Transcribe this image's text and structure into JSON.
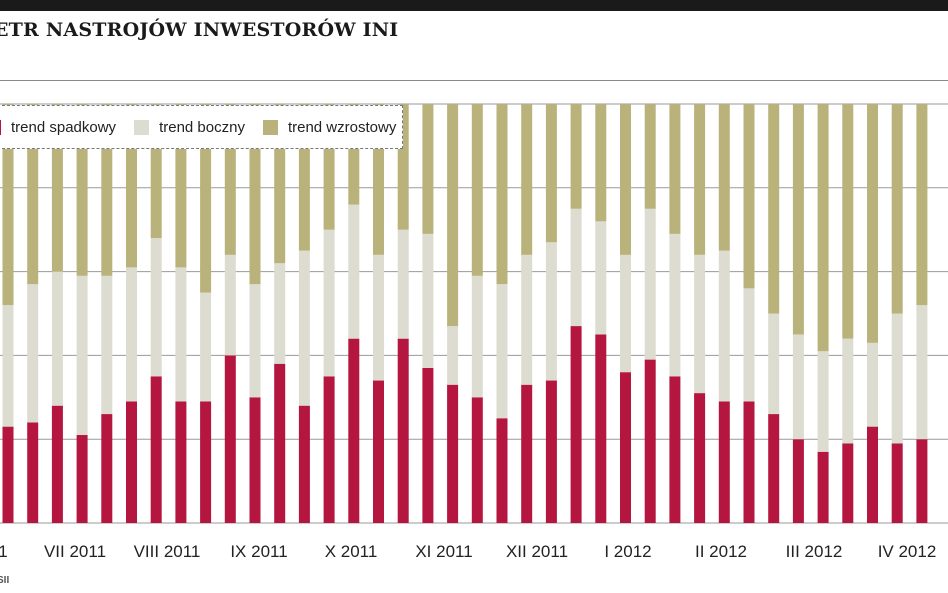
{
  "title": "ETR NASTROJÓW INWESTORÓW INI",
  "source": "SII",
  "colors": {
    "down": "#b5163f",
    "side": "#dcdcd0",
    "up": "#b9b27a"
  },
  "chart_data": {
    "type": "bar",
    "stacked": true,
    "ylim": [
      0,
      100
    ],
    "grid": true,
    "legend_position": "top-left",
    "series": [
      {
        "name": "trend spadkowy",
        "values": [
          23,
          24,
          28,
          21,
          26,
          29,
          35,
          29,
          29,
          40,
          30,
          38,
          28,
          35,
          44,
          34,
          44,
          37,
          33,
          30,
          25,
          33,
          34,
          47,
          45,
          36,
          39,
          35,
          31,
          29,
          29,
          26,
          20,
          17,
          19,
          23,
          19,
          20
        ]
      },
      {
        "name": "trend boczny",
        "values": [
          29,
          33,
          32,
          38,
          33,
          32,
          33,
          32,
          26,
          24,
          27,
          24,
          37,
          35,
          32,
          30,
          26,
          32,
          14,
          29,
          32,
          31,
          33,
          28,
          27,
          28,
          36,
          34,
          33,
          36,
          27,
          24,
          25,
          24,
          25,
          20,
          31,
          32
        ]
      },
      {
        "name": "trend wzrostowy",
        "values": [
          48,
          43,
          40,
          41,
          41,
          39,
          32,
          39,
          45,
          36,
          43,
          38,
          35,
          30,
          24,
          36,
          30,
          31,
          53,
          41,
          43,
          36,
          33,
          25,
          28,
          36,
          25,
          31,
          36,
          35,
          44,
          50,
          55,
          59,
          56,
          57,
          50,
          48
        ]
      }
    ],
    "x_tick_labels": [
      "1",
      "VII 2011",
      "VIII 2011",
      "IX 2011",
      "X 2011",
      "XI 2011",
      "XII 2011",
      "I 2012",
      "II 2012",
      "III 2012",
      "IV 2012"
    ]
  }
}
